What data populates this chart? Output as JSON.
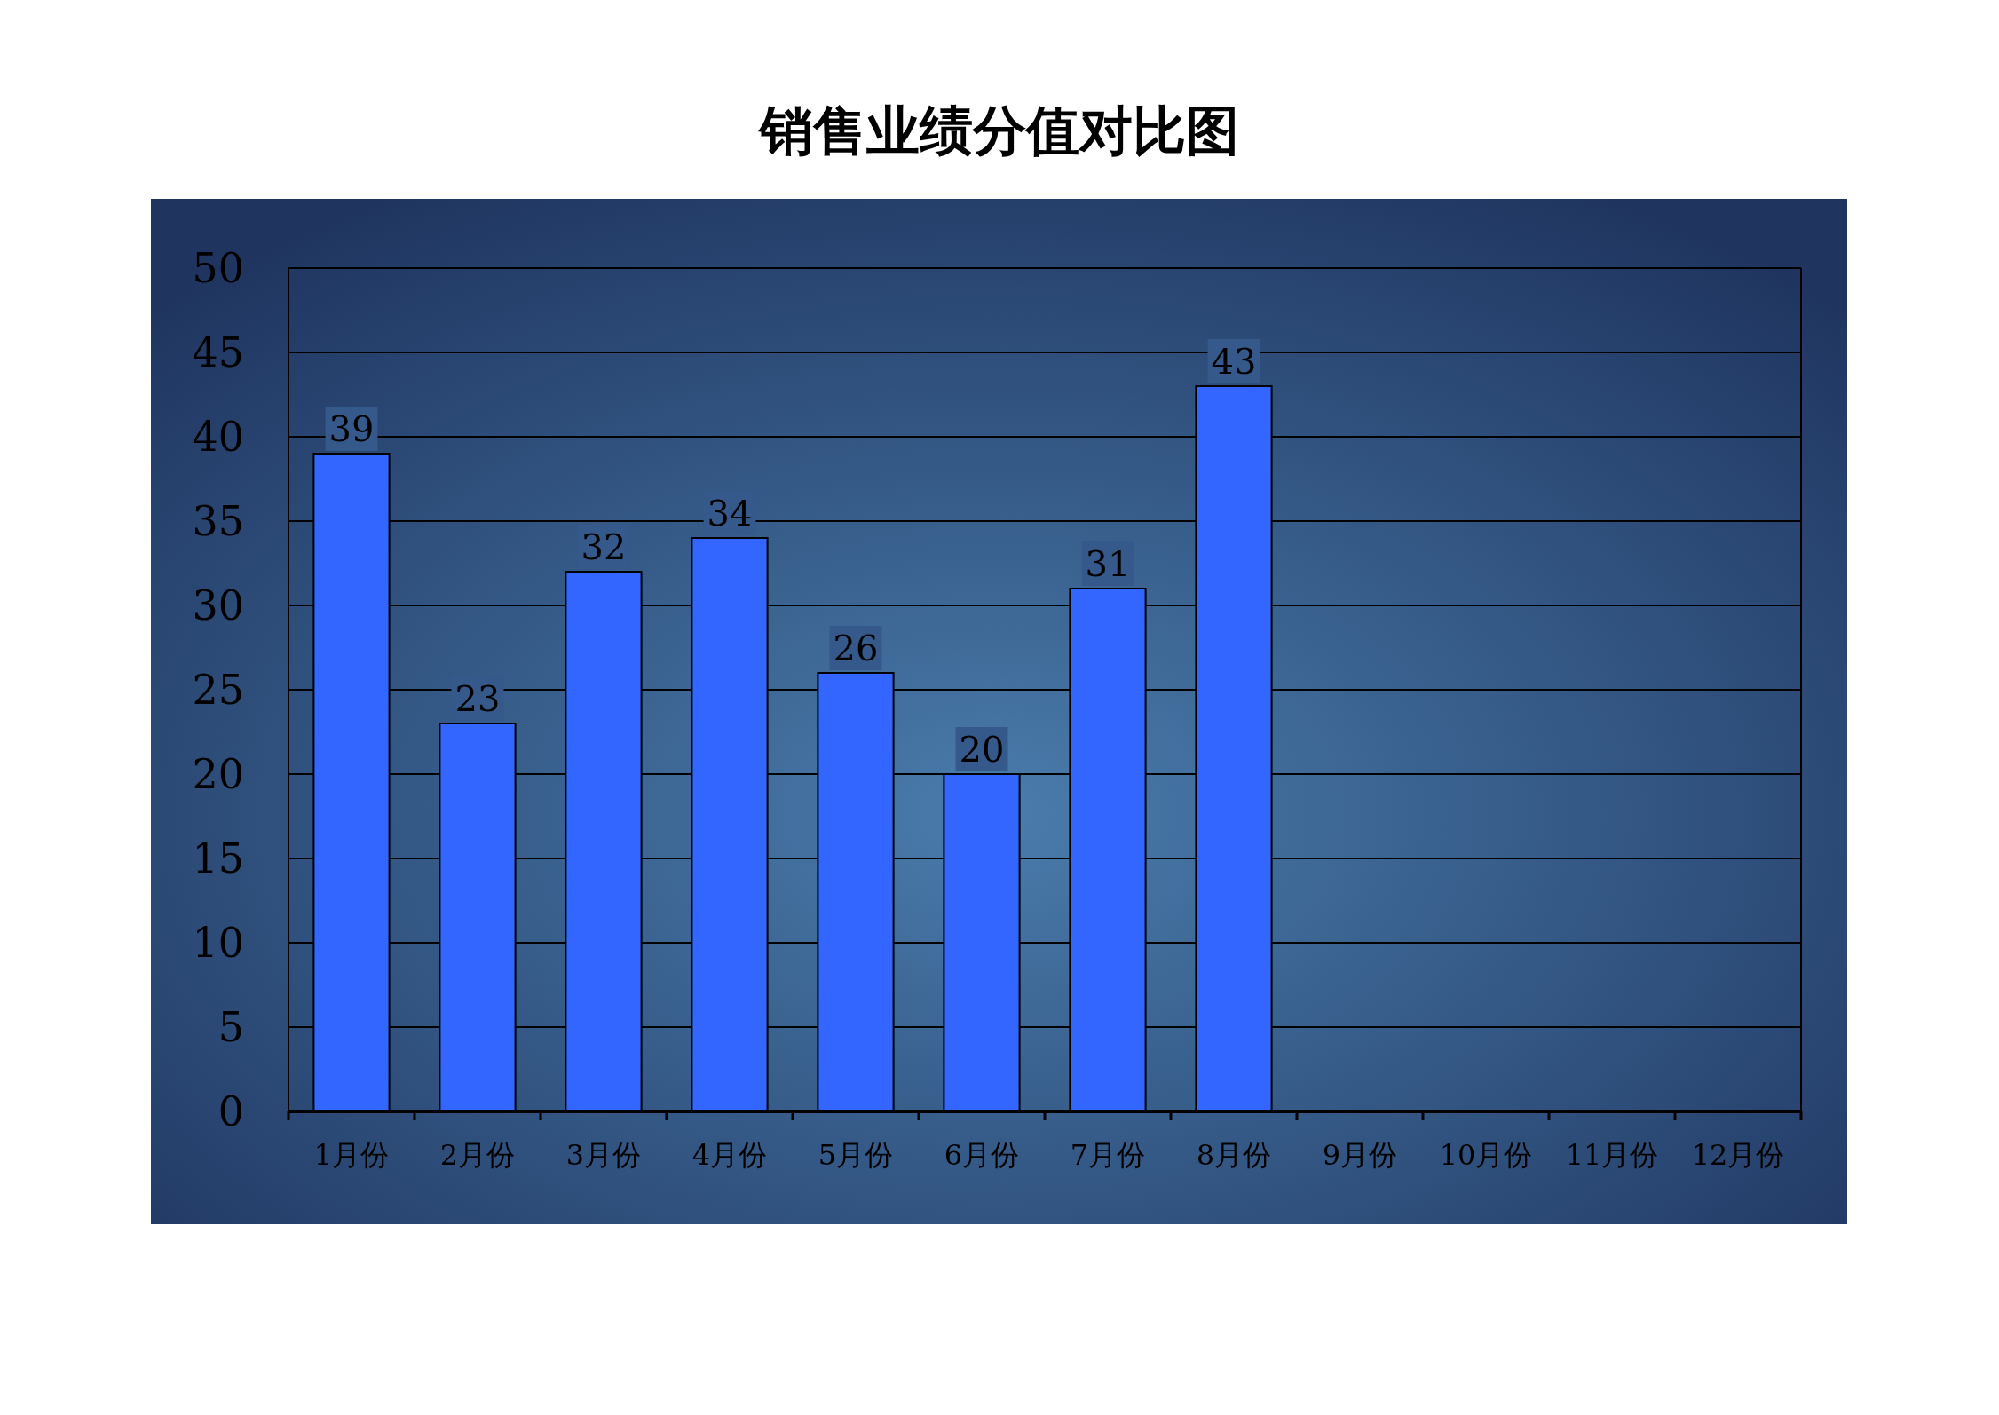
{
  "chart_data": {
    "type": "bar",
    "title": "销售业绩分值对比图",
    "categories": [
      "1月份",
      "2月份",
      "3月份",
      "4月份",
      "5月份",
      "6月份",
      "7月份",
      "8月份",
      "9月份",
      "10月份",
      "11月份",
      "12月份"
    ],
    "values": [
      39,
      23,
      32,
      34,
      26,
      20,
      31,
      43,
      null,
      null,
      null,
      null
    ],
    "color": "#3366ff",
    "ylim": [
      0,
      50
    ],
    "yticks": [
      0,
      5,
      10,
      15,
      20,
      25,
      30,
      35,
      40,
      45,
      50
    ],
    "grid": "y",
    "data_labels": true
  }
}
